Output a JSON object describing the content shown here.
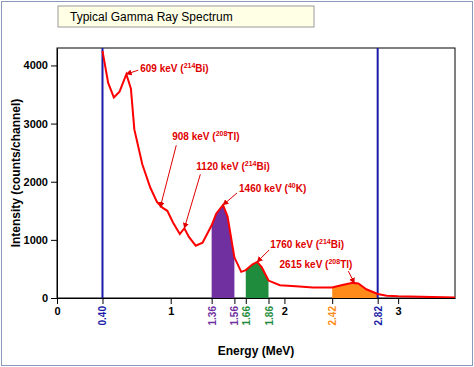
{
  "chart_data": {
    "type": "line",
    "title": "Typical Gamma Ray Spectrum",
    "x_label": "Energy (MeV)",
    "y_label": "Intensity (counts/channel)",
    "x": [
      0.4,
      0.45,
      0.5,
      0.55,
      0.61,
      0.65,
      0.68,
      0.75,
      0.82,
      0.88,
      0.93,
      0.97,
      1.02,
      1.08,
      1.12,
      1.16,
      1.22,
      1.28,
      1.36,
      1.4,
      1.46,
      1.5,
      1.56,
      1.62,
      1.66,
      1.72,
      1.76,
      1.8,
      1.86,
      1.96,
      2.1,
      2.25,
      2.42,
      2.5,
      2.6,
      2.65,
      2.72,
      2.82,
      2.9,
      3.0,
      3.2,
      3.5
    ],
    "values": [
      4250,
      3700,
      3450,
      3550,
      3850,
      3600,
      2900,
      2300,
      1900,
      1650,
      1550,
      1500,
      1300,
      1100,
      1200,
      1050,
      900,
      950,
      1250,
      1450,
      1600,
      1400,
      700,
      450,
      480,
      580,
      620,
      530,
      300,
      220,
      200,
      180,
      180,
      220,
      260,
      250,
      150,
      70,
      40,
      30,
      20,
      10
    ],
    "color": "#ff0000",
    "xlim": [
      0,
      3.5
    ],
    "ylim": [
      0,
      4300
    ],
    "xticks": [
      0,
      {
        "value": 0.4,
        "label": "0.40"
      },
      1,
      {
        "value": 1.36,
        "label": "1.36"
      },
      {
        "value": 1.56,
        "label": "1.56"
      },
      {
        "value": 1.66,
        "label": "1.66"
      },
      {
        "value": 1.86,
        "label": "1.86"
      },
      2,
      {
        "value": 2.42,
        "label": "2.42"
      },
      {
        "value": 2.82,
        "label": "2.82"
      },
      3
    ],
    "yticks": [
      0,
      1000,
      2000,
      3000,
      4000
    ],
    "grid": false,
    "regions": [
      {
        "x0": 1.36,
        "x1": 1.56,
        "color": "#7030a0"
      },
      {
        "x0": 1.66,
        "x1": 1.86,
        "color": "#1e8c3c"
      },
      {
        "x0": 2.42,
        "x1": 2.82,
        "color": "#ff8c1a"
      }
    ],
    "vlines": [
      {
        "x": 0.4,
        "color": "#1a1aa8"
      },
      {
        "x": 2.82,
        "color": "#1a1aa8"
      }
    ],
    "annotations": [
      {
        "text": "609 keV (",
        "sup": "214",
        "after": "Bi)",
        "x": 0.609,
        "y": 3850
      },
      {
        "text": "908 keV (",
        "sup": "208",
        "after": "Tl)",
        "x": 0.908,
        "y": 1560
      },
      {
        "text": "1120 keV (",
        "sup": "214",
        "after": "Bi)",
        "x": 1.12,
        "y": 1200
      },
      {
        "text": "1460 keV (",
        "sup": "40",
        "after": "K)",
        "x": 1.46,
        "y": 1600
      },
      {
        "text": "1760 keV (",
        "sup": "214",
        "after": "Bi)",
        "x": 1.76,
        "y": 620
      },
      {
        "text": "2615 keV (",
        "sup": "208",
        "after": "Tl)",
        "x": 2.615,
        "y": 255
      }
    ]
  }
}
